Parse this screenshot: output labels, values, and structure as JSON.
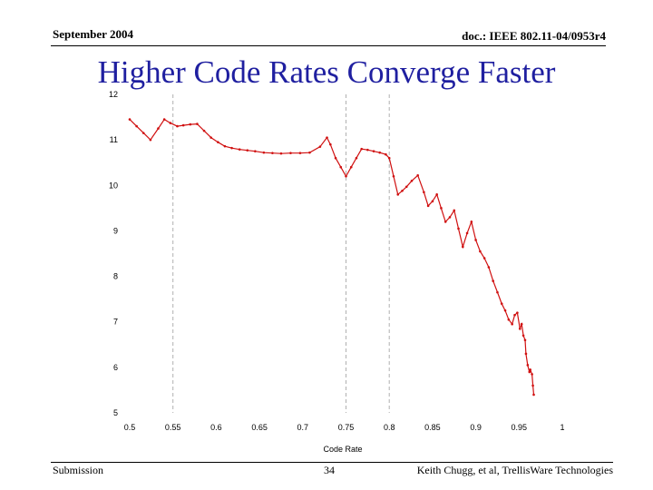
{
  "header": {
    "date": "September 2004",
    "doc_id": "doc.: IEEE 802.11-04/0953r4"
  },
  "slide": {
    "title": "Higher Code Rates Converge Faster"
  },
  "footer": {
    "left": "Submission",
    "page": "34",
    "right": "Keith Chugg, et al, TrellisWare Technologies"
  },
  "colors": {
    "title": "#1f1fa0",
    "series": "#d01010",
    "gridline": "#b0b0b0"
  },
  "chart_data": {
    "type": "line",
    "title": "",
    "xlabel": "Code Rate",
    "ylabel": "",
    "xlim": [
      0.5,
      1
    ],
    "ylim": [
      5,
      12
    ],
    "x_ticks": [
      "0.5",
      "0.55",
      "0.6",
      "0.65",
      "0.7",
      "0.75",
      "0.8",
      "0.85",
      "0.9",
      "0.95",
      "1"
    ],
    "y_ticks": [
      "5",
      "6",
      "7",
      "8",
      "9",
      "10",
      "11",
      "12"
    ],
    "vertical_reference_lines": [
      0.55,
      0.75,
      0.8
    ],
    "grid": false,
    "series": [
      {
        "x": [
          0.5,
          0.508,
          0.516,
          0.524,
          0.533,
          0.54,
          0.547,
          0.555,
          0.562,
          0.57,
          0.578,
          0.586,
          0.594,
          0.602,
          0.61,
          0.618,
          0.627,
          0.636,
          0.645,
          0.655,
          0.665,
          0.675,
          0.686,
          0.697,
          0.708,
          0.72,
          0.728,
          0.732,
          0.738,
          0.744,
          0.75,
          0.756,
          0.762,
          0.768,
          0.775,
          0.782,
          0.789,
          0.796,
          0.8,
          0.805,
          0.81,
          0.815,
          0.82,
          0.826,
          0.833,
          0.84,
          0.845,
          0.85,
          0.855,
          0.86,
          0.865,
          0.87,
          0.875,
          0.88,
          0.885,
          0.89,
          0.895,
          0.9,
          0.905,
          0.91,
          0.915,
          0.92,
          0.925,
          0.93,
          0.934,
          0.938,
          0.942,
          0.945,
          0.948,
          0.951,
          0.953,
          0.955,
          0.957,
          0.958,
          0.96,
          0.962,
          0.963,
          0.965,
          0.966,
          0.967
        ],
        "y": [
          11.45,
          11.3,
          11.15,
          11.0,
          11.25,
          11.45,
          11.37,
          11.3,
          11.32,
          11.34,
          11.35,
          11.2,
          11.05,
          10.95,
          10.86,
          10.82,
          10.79,
          10.77,
          10.75,
          10.72,
          10.71,
          10.7,
          10.71,
          10.71,
          10.72,
          10.85,
          11.05,
          10.9,
          10.6,
          10.4,
          10.2,
          10.4,
          10.6,
          10.8,
          10.78,
          10.75,
          10.72,
          10.68,
          10.6,
          10.2,
          9.8,
          9.88,
          9.97,
          10.1,
          10.22,
          9.85,
          9.55,
          9.65,
          9.8,
          9.5,
          9.2,
          9.3,
          9.45,
          9.05,
          8.65,
          8.95,
          9.2,
          8.8,
          8.55,
          8.4,
          8.2,
          7.9,
          7.65,
          7.4,
          7.25,
          7.05,
          6.95,
          7.15,
          7.2,
          6.85,
          6.95,
          6.7,
          6.6,
          6.3,
          6.05,
          5.9,
          5.95,
          5.85,
          5.6,
          5.4
        ]
      }
    ]
  }
}
